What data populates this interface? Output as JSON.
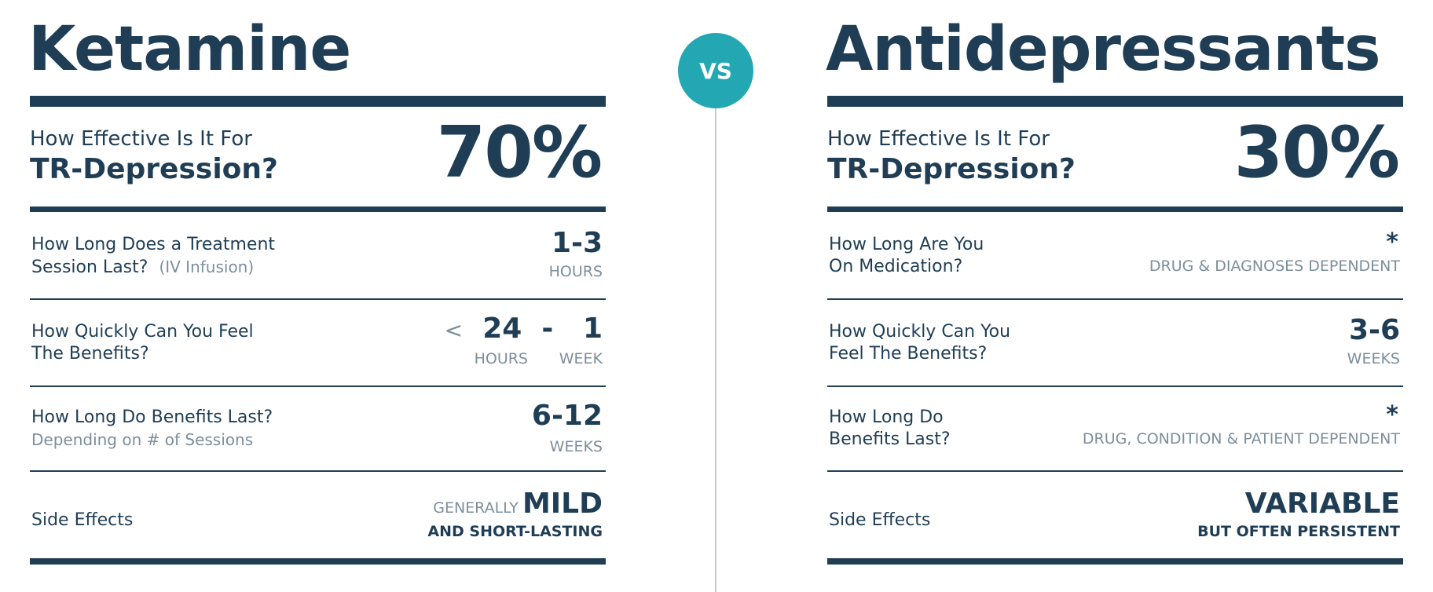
{
  "vs_label": "VS",
  "left": {
    "title": "Ketamine",
    "effectiveness": {
      "question_line1": "How Effective Is It For",
      "question_line2": "TR-Depression?",
      "value": "70%"
    },
    "session": {
      "line1": "How Long Does a Treatment",
      "line2": "Session Last?",
      "note": "(IV Infusion)",
      "value": "1-3",
      "unit": "HOURS"
    },
    "benefits_speed": {
      "line1": "How Quickly Can You Feel",
      "line2": "The Benefits?",
      "lt": "<",
      "value_a": "24",
      "dash": "-",
      "value_b": "1",
      "unit_a": "HOURS",
      "unit_b": "WEEK"
    },
    "duration": {
      "line1": "How Long Do Benefits Last?",
      "line2": "Depending on # of Sessions",
      "value": "6-12",
      "unit": "WEEKS"
    },
    "side_effects": {
      "label": "Side Effects",
      "prefix": "GENERALLY",
      "value": "MILD",
      "sub": "AND SHORT-LASTING"
    }
  },
  "right": {
    "title": "Antidepressants",
    "effectiveness": {
      "question_line1": "How Effective Is It For",
      "question_line2": "TR-Depression?",
      "value": "30%"
    },
    "medication": {
      "line1": "How Long Are You",
      "line2": "On Medication?",
      "star": "*",
      "note": "DRUG & DIAGNOSES DEPENDENT"
    },
    "benefits_speed": {
      "line1": "How Quickly Can You",
      "line2": "Feel The Benefits?",
      "value": "3-6",
      "unit": "WEEKS"
    },
    "duration": {
      "line1": "How Long Do",
      "line2": "Benefits Last?",
      "star": "*",
      "note": "DRUG, CONDITION & PATIENT DEPENDENT"
    },
    "side_effects": {
      "label": "Side Effects",
      "value": "VARIABLE",
      "sub": "BUT OFTEN PERSISTENT"
    }
  }
}
